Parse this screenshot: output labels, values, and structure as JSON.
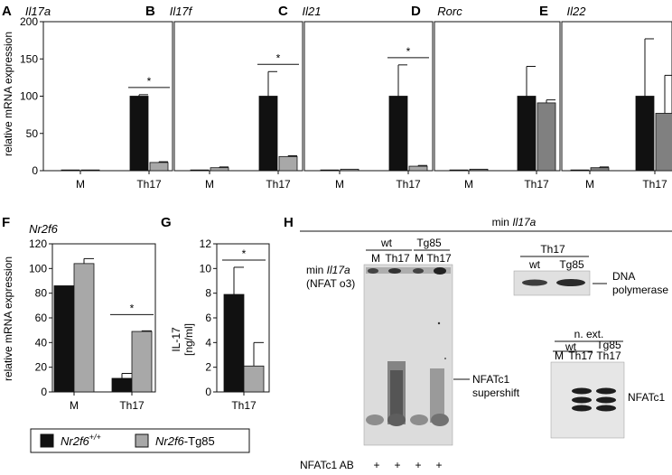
{
  "panel_labels": [
    "A",
    "B",
    "C",
    "D",
    "E",
    "F",
    "G",
    "H"
  ],
  "series_colors": {
    "wt": "#111111",
    "tg": "#a8a8a8",
    "tg_dark": "#808080"
  },
  "chart_data": [
    {
      "id": "A",
      "type": "bar",
      "title": "Il17a",
      "categories": [
        "M",
        "Th17"
      ],
      "ylabel": "relative mRNA expression",
      "ylim": [
        0,
        200
      ],
      "yticks": [
        0,
        50,
        100,
        150,
        200
      ],
      "series": [
        {
          "values": [
            1,
            100
          ],
          "errors": [
            0,
            2
          ]
        },
        {
          "values": [
            1,
            11
          ],
          "errors": [
            0,
            1
          ]
        }
      ],
      "significance": {
        "category": "Th17",
        "label": "*"
      }
    },
    {
      "id": "B",
      "type": "bar",
      "title": "Il17f",
      "categories": [
        "M",
        "Th17"
      ],
      "ylabel": "",
      "ylim": [
        0,
        200
      ],
      "yticks": [],
      "series": [
        {
          "values": [
            1,
            100
          ],
          "errors": [
            0,
            33
          ]
        },
        {
          "values": [
            4,
            19
          ],
          "errors": [
            1,
            1
          ]
        }
      ],
      "significance": {
        "category": "Th17",
        "label": "*"
      }
    },
    {
      "id": "C",
      "type": "bar",
      "title": "Il21",
      "categories": [
        "M",
        "Th17"
      ],
      "ylabel": "",
      "ylim": [
        0,
        200
      ],
      "yticks": [],
      "series": [
        {
          "values": [
            1,
            100
          ],
          "errors": [
            0,
            42
          ]
        },
        {
          "values": [
            2,
            6
          ],
          "errors": [
            0,
            1
          ]
        }
      ],
      "significance": {
        "category": "Th17",
        "label": "*"
      }
    },
    {
      "id": "D",
      "type": "bar",
      "title": "Rorc",
      "categories": [
        "M",
        "Th17"
      ],
      "ylabel": "",
      "ylim": [
        0,
        200
      ],
      "yticks": [],
      "series": [
        {
          "values": [
            1,
            100
          ],
          "errors": [
            0,
            40
          ]
        },
        {
          "values": [
            2,
            91
          ],
          "errors": [
            0,
            4
          ]
        }
      ]
    },
    {
      "id": "E",
      "type": "bar",
      "title": "Il22",
      "categories": [
        "M",
        "Th17"
      ],
      "ylabel": "",
      "ylim": [
        0,
        200
      ],
      "yticks": [],
      "series": [
        {
          "values": [
            1,
            100
          ],
          "errors": [
            0,
            77
          ]
        },
        {
          "values": [
            4,
            77
          ],
          "errors": [
            1,
            51
          ]
        }
      ]
    },
    {
      "id": "F",
      "type": "bar",
      "title": "Nr2f6",
      "categories": [
        "M",
        "Th17"
      ],
      "ylabel": "relative mRNA expression",
      "ylim": [
        0,
        120
      ],
      "yticks": [
        0,
        20,
        40,
        60,
        80,
        100,
        120
      ],
      "series": [
        {
          "values": [
            86,
            11
          ],
          "errors": [
            0,
            4
          ]
        },
        {
          "values": [
            104,
            49
          ],
          "errors": [
            4,
            0.5
          ]
        }
      ],
      "significance": {
        "category": "Th17",
        "label": "*"
      }
    },
    {
      "id": "G",
      "type": "bar",
      "title": "",
      "categories": [
        "Th17"
      ],
      "ylabel": "IL-17",
      "ylabel2": "[ng/ml]",
      "ylim": [
        0,
        12
      ],
      "yticks": [
        0,
        2,
        4,
        6,
        8,
        10,
        12
      ],
      "series": [
        {
          "values": [
            7.9
          ],
          "errors": [
            2.2
          ]
        },
        {
          "values": [
            2.1
          ],
          "errors": [
            1.9
          ]
        }
      ],
      "significance": {
        "category": "Th17",
        "label": "*"
      }
    }
  ],
  "legend": {
    "wt_label": "Nr2f6",
    "wt_sup": "+/+",
    "tg_label_italic": "Nr2f6",
    "tg_label_rest": "-Tg85"
  },
  "panel_h": {
    "header_prefix": "min ",
    "header_gene": "Il17a",
    "gel": {
      "group_wt": "wt",
      "group_tg": "Tg85",
      "lanes": [
        "M",
        "Th17",
        "M",
        "Th17"
      ],
      "probe_line1_prefix": "min ",
      "probe_line1_gene": "Il17a",
      "probe_line2": "(NFAT o3)",
      "supershift_line1": "NFATc1",
      "supershift_line2": "supershift",
      "ab_label": "NFATc1 AB",
      "ab_marks": [
        "+",
        "+",
        "+",
        "+"
      ]
    },
    "dna_blot": {
      "header": "Th17",
      "lanes": [
        "wt",
        "Tg85"
      ],
      "label_line1": "DNA",
      "label_line2": "polymerase"
    },
    "nfat_blot": {
      "header": "n. ext.",
      "group_wt": "wt",
      "group_tg": "Tg85",
      "lanes": [
        "M",
        "Th17",
        "Th17"
      ],
      "label": "NFATc1"
    }
  }
}
